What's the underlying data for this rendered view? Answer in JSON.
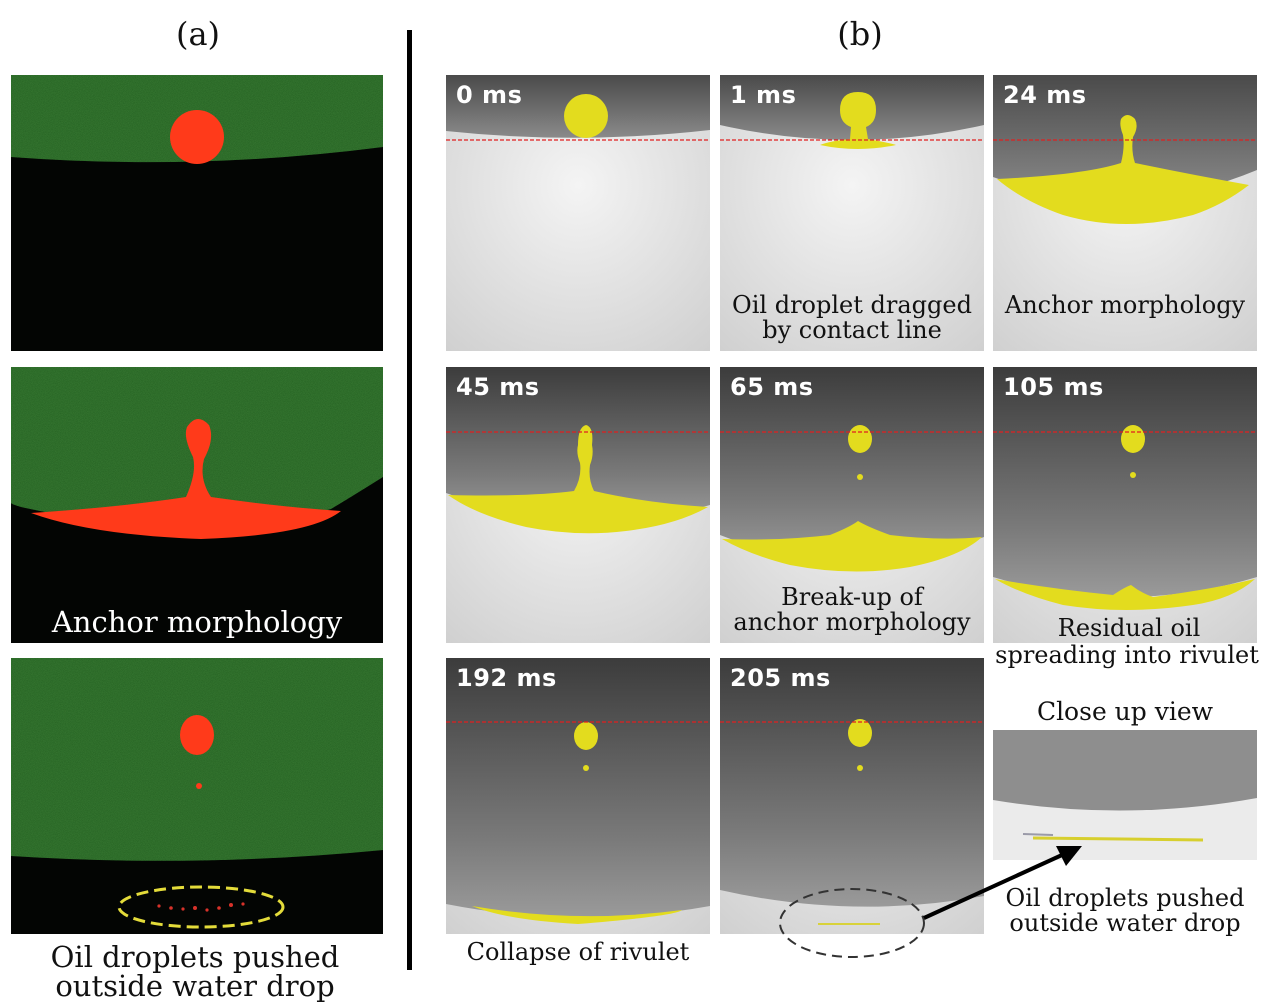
{
  "panel_a": {
    "label": "(a)",
    "frame2_caption": "Anchor morphology",
    "bottom_caption_line1": "Oil droplets pushed",
    "bottom_caption_line2": "outside water drop"
  },
  "panel_b": {
    "label": "(b)",
    "times": [
      "0 ms",
      "1 ms",
      "24 ms",
      "45 ms",
      "65 ms",
      "105 ms",
      "192 ms",
      "205 ms"
    ],
    "captions": {
      "f1_line1": "Oil droplet dragged",
      "f1_line2": "by contact line",
      "f2": "Anchor morphology",
      "f4_line1": "Break-up of",
      "f4_line2": "anchor morphology",
      "f5_line1": "Residual oil",
      "f5_line2": "spreading into rivulet",
      "f6": "Collapse of rivulet",
      "closeup_title": "Close up view",
      "closeup_line1": "Oil droplets pushed",
      "closeup_line2": "outside water drop"
    }
  },
  "colors": {
    "oil_yellow": "#e3dc1e",
    "oil_red": "#ff3a1a",
    "water_green": "#1f5a1c",
    "reference_line": "#e02020"
  }
}
